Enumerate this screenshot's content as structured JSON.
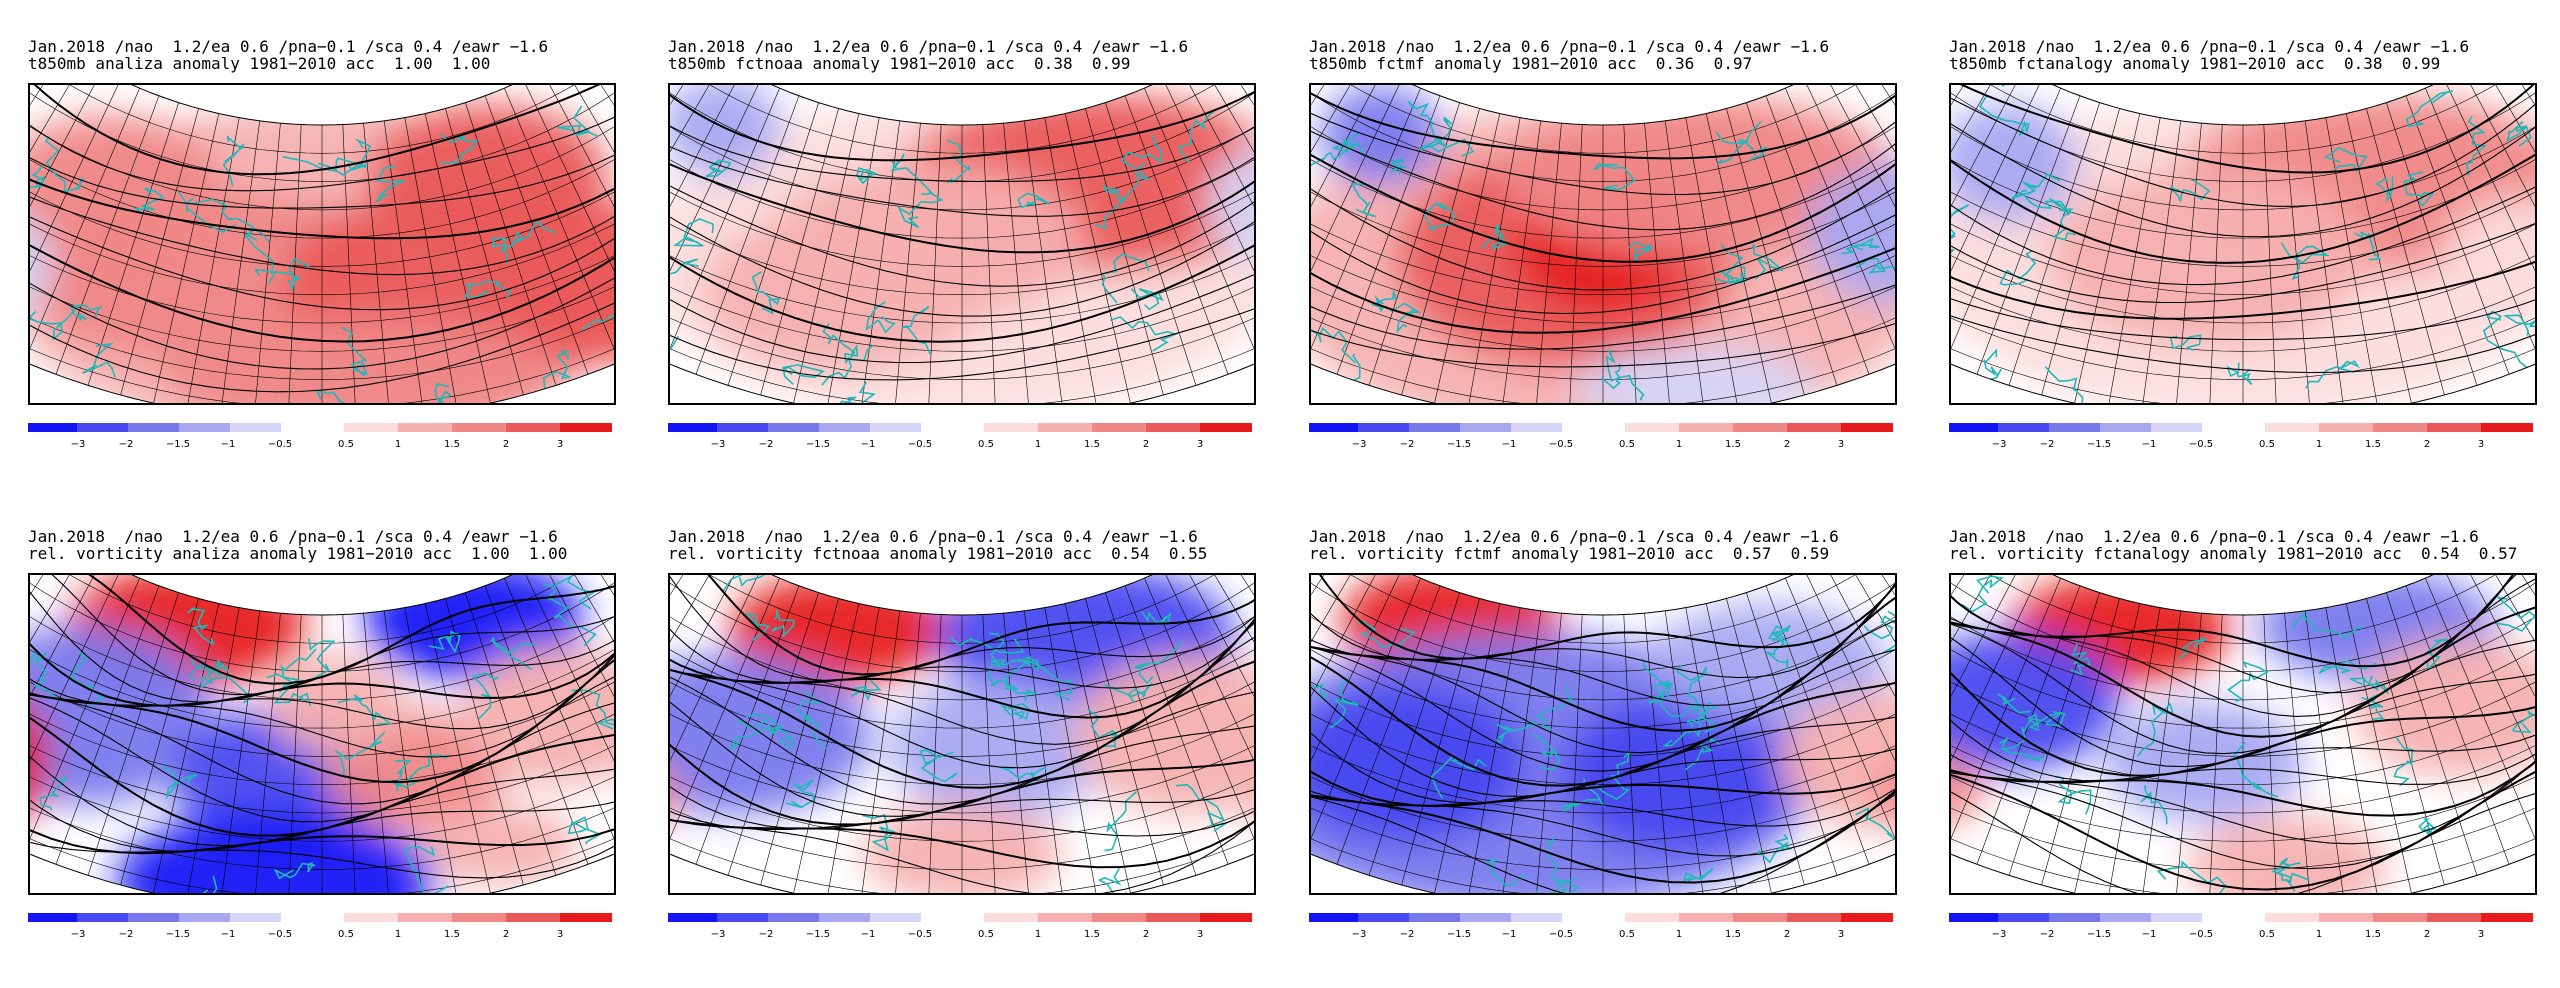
{
  "panels": [
    {
      "title_line1": "Jan.2018 /nao  1.2/ea 0.6 /pna−0.1 /sca 0.4 /eawr −1.6",
      "title_line2": "t850mb analiza anomaly 1981−2010 acc  1.00  1.00",
      "field": "t850mb",
      "source": "analiza",
      "acc": [
        "1.00",
        "1.00"
      ],
      "anomaly_pattern": "warm-widespread"
    },
    {
      "title_line1": "Jan.2018 /nao  1.2/ea 0.6 /pna−0.1 /sca 0.4 /eawr −1.6",
      "title_line2": "t850mb fctnoaa anomaly 1981−2010 acc  0.38  0.99",
      "field": "t850mb",
      "source": "fctnoaa",
      "acc": [
        "0.38",
        "0.99"
      ],
      "anomaly_pattern": "warm-north"
    },
    {
      "title_line1": "Jan.2018 /nao  1.2/ea 0.6 /pna−0.1 /sca 0.4 /eawr −1.6",
      "title_line2": "t850mb fctmf anomaly 1981−2010 acc  0.36  0.97",
      "field": "t850mb",
      "source": "fctmf",
      "acc": [
        "0.36",
        "0.97"
      ],
      "anomaly_pattern": "warm-central"
    },
    {
      "title_line1": "Jan.2018 /nao  1.2/ea 0.6 /pna−0.1 /sca 0.4 /eawr −1.6",
      "title_line2": "t850mb fctanalogy anomaly 1981−2010 acc  0.38  0.99",
      "field": "t850mb",
      "source": "fctanalogy",
      "acc": [
        "0.38",
        "0.99"
      ],
      "anomaly_pattern": "warm-north-weak"
    },
    {
      "title_line1": "Jan.2018  /nao  1.2/ea 0.6 /pna−0.1 /sca 0.4 /eawr −1.6",
      "title_line2": "rel. vorticity analiza anomaly 1981−2010 acc  1.00  1.00",
      "field": "rel. vorticity",
      "source": "analiza",
      "acc": [
        "1.00",
        "1.00"
      ],
      "anomaly_pattern": "vort-analysis"
    },
    {
      "title_line1": "Jan.2018  /nao  1.2/ea 0.6 /pna−0.1 /sca 0.4 /eawr −1.6",
      "title_line2": "rel. vorticity fctnoaa anomaly 1981−2010 acc  0.54  0.55",
      "field": "rel. vorticity",
      "source": "fctnoaa",
      "acc": [
        "0.54",
        "0.55"
      ],
      "anomaly_pattern": "vort-noaa"
    },
    {
      "title_line1": "Jan.2018  /nao  1.2/ea 0.6 /pna−0.1 /sca 0.4 /eawr −1.6",
      "title_line2": "rel. vorticity fctmf anomaly 1981−2010 acc  0.57  0.59",
      "field": "rel. vorticity",
      "source": "fctmf",
      "acc": [
        "0.57",
        "0.59"
      ],
      "anomaly_pattern": "vort-mf"
    },
    {
      "title_line1": "Jan.2018  /nao  1.2/ea 0.6 /pna−0.1 /sca 0.4 /eawr −1.6",
      "title_line2": "rel. vorticity fctanalogy anomaly 1981−2010 acc  0.54  0.57",
      "field": "rel. vorticity",
      "source": "fctanalogy",
      "acc": [
        "0.54",
        "0.57"
      ],
      "anomaly_pattern": "vort-analogy"
    }
  ],
  "colorbar": {
    "labels": [
      "−3",
      "−2",
      "−1.5",
      "−1",
      "−0.5",
      "0.5",
      "1",
      "1.5",
      "2",
      "3"
    ],
    "neg_colors": [
      "#1414f5",
      "#4848f0",
      "#7878ee",
      "#a8a8f2",
      "#d6d6f8"
    ],
    "pos_colors": [
      "#fcdcdc",
      "#f6b0b0",
      "#f08888",
      "#ea5a5a",
      "#e61a1a"
    ]
  },
  "colors": {
    "coast": "#20b8b8",
    "contour": "#000000",
    "warm": "#e61a1a",
    "cold": "#1414f5"
  }
}
